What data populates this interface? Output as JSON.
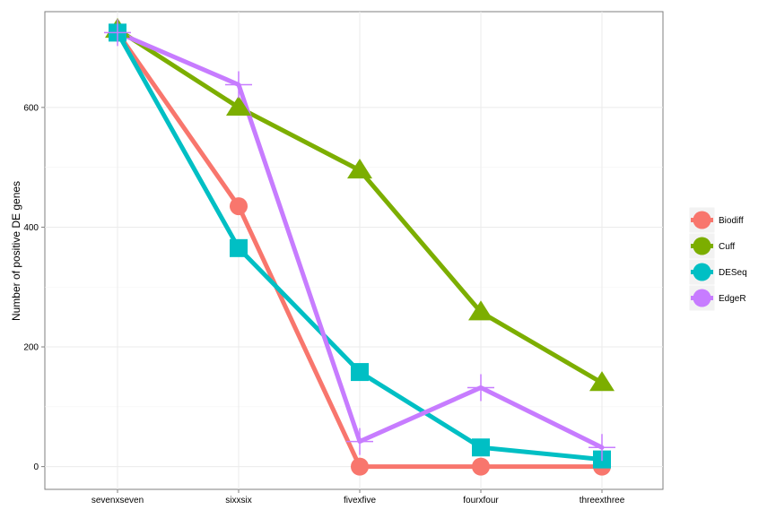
{
  "chart_data": {
    "type": "line",
    "title": "",
    "xlabel": "",
    "ylabel": "Number of positive DE genes",
    "categories": [
      "sevenxseven",
      "sixxsix",
      "fivexfive",
      "fourxfour",
      "threexthree"
    ],
    "ylim": [
      -38,
      760
    ],
    "yticks": [
      0,
      200,
      400,
      600
    ],
    "grid": true,
    "legend_position": "right",
    "series": [
      {
        "name": "Biodiff",
        "color": "#F8766D",
        "marker": "circle",
        "values": [
          725,
          435,
          0,
          0,
          0
        ]
      },
      {
        "name": "Cuff",
        "color": "#7CAE00",
        "marker": "triangle",
        "values": [
          730,
          600,
          495,
          258,
          140
        ]
      },
      {
        "name": "DESeq",
        "color": "#00BFC4",
        "marker": "square",
        "values": [
          725,
          365,
          158,
          32,
          12
        ]
      },
      {
        "name": "EdgeR",
        "color": "#C77CFF",
        "marker": "plus",
        "values": [
          725,
          638,
          42,
          132,
          32
        ]
      }
    ]
  }
}
